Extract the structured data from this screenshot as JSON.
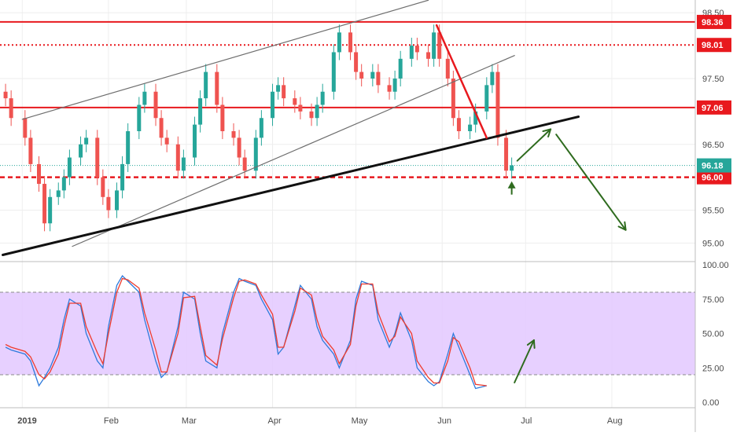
{
  "colors": {
    "up": "#26a69a",
    "down": "#ef5350",
    "level": "#e8191e",
    "price_line": "#26a69a",
    "stoch_k": "#2f7bdc",
    "stoch_d": "#ef3b2d",
    "stoch_band": "#e3c8ff",
    "channel": "#6e6e6e",
    "trendline": "#111111",
    "arrow": "#2e6b1e",
    "grid": "#eeeeee"
  },
  "price_axis": {
    "min": 94.85,
    "max": 98.55,
    "ticks": [
      "95.00",
      "95.50",
      "96.50",
      "97.50",
      "98.50"
    ]
  },
  "levels": [
    {
      "value": 98.36,
      "label": "98.36",
      "style": "solid"
    },
    {
      "value": 98.01,
      "label": "98.01",
      "style": "dotted"
    },
    {
      "value": 97.06,
      "label": "97.06",
      "style": "solid"
    },
    {
      "value": 96.0,
      "label": "96.00",
      "style": "dashed"
    }
  ],
  "last_price": {
    "value": 96.18,
    "label": "96.18"
  },
  "stoch_axis": {
    "ticks": [
      "100.00",
      "75.00",
      "50.00",
      "25.00",
      "0.00"
    ],
    "band": [
      20,
      80
    ]
  },
  "time_axis": {
    "labels": [
      "2019",
      "Feb",
      "Mar",
      "Apr",
      "May",
      "Jun",
      "Jul",
      "Aug"
    ]
  },
  "chart_data": {
    "type": "candlestick",
    "title": "",
    "x_range": [
      "2018-12-24",
      "2019-08-31"
    ],
    "candles_close_approx": [
      [
        "2018-12-26",
        97.2
      ],
      [
        "2018-12-28",
        96.9
      ],
      [
        "2019-01-02",
        96.6
      ],
      [
        "2019-01-04",
        96.2
      ],
      [
        "2019-01-07",
        95.9
      ],
      [
        "2019-01-09",
        95.3
      ],
      [
        "2019-01-11",
        95.7
      ],
      [
        "2019-01-14",
        95.8
      ],
      [
        "2019-01-16",
        96.0
      ],
      [
        "2019-01-18",
        96.3
      ],
      [
        "2019-01-22",
        96.5
      ],
      [
        "2019-01-24",
        96.6
      ],
      [
        "2019-01-28",
        96.0
      ],
      [
        "2019-01-30",
        95.7
      ],
      [
        "2019-02-01",
        95.5
      ],
      [
        "2019-02-04",
        95.8
      ],
      [
        "2019-02-06",
        96.2
      ],
      [
        "2019-02-08",
        96.7
      ],
      [
        "2019-02-12",
        97.1
      ],
      [
        "2019-02-14",
        97.3
      ],
      [
        "2019-02-18",
        96.9
      ],
      [
        "2019-02-20",
        96.6
      ],
      [
        "2019-02-22",
        96.5
      ],
      [
        "2019-02-26",
        96.1
      ],
      [
        "2019-02-28",
        96.3
      ],
      [
        "2019-03-04",
        96.8
      ],
      [
        "2019-03-06",
        97.2
      ],
      [
        "2019-03-08",
        97.6
      ],
      [
        "2019-03-12",
        97.1
      ],
      [
        "2019-03-14",
        96.7
      ],
      [
        "2019-03-18",
        96.6
      ],
      [
        "2019-03-20",
        96.3
      ],
      [
        "2019-03-22",
        96.1
      ],
      [
        "2019-03-26",
        96.6
      ],
      [
        "2019-03-28",
        96.9
      ],
      [
        "2019-04-01",
        97.3
      ],
      [
        "2019-04-03",
        97.4
      ],
      [
        "2019-04-05",
        97.2
      ],
      [
        "2019-04-09",
        97.1
      ],
      [
        "2019-04-11",
        97.0
      ],
      [
        "2019-04-15",
        96.9
      ],
      [
        "2019-04-17",
        97.1
      ],
      [
        "2019-04-19",
        97.3
      ],
      [
        "2019-04-23",
        97.9
      ],
      [
        "2019-04-25",
        98.2
      ],
      [
        "2019-04-29",
        97.9
      ],
      [
        "2019-05-01",
        97.6
      ],
      [
        "2019-05-03",
        97.5
      ],
      [
        "2019-05-07",
        97.6
      ],
      [
        "2019-05-09",
        97.4
      ],
      [
        "2019-05-13",
        97.3
      ],
      [
        "2019-05-15",
        97.5
      ],
      [
        "2019-05-17",
        97.8
      ],
      [
        "2019-05-21",
        98.0
      ],
      [
        "2019-05-23",
        97.9
      ],
      [
        "2019-05-27",
        97.8
      ],
      [
        "2019-05-29",
        98.2
      ],
      [
        "2019-05-31",
        97.8
      ],
      [
        "2019-06-03",
        97.5
      ],
      [
        "2019-06-05",
        96.9
      ],
      [
        "2019-06-07",
        96.7
      ],
      [
        "2019-06-11",
        96.8
      ],
      [
        "2019-06-13",
        97.0
      ],
      [
        "2019-06-17",
        97.4
      ],
      [
        "2019-06-19",
        97.6
      ],
      [
        "2019-06-21",
        96.6
      ],
      [
        "2019-06-24",
        96.1
      ],
      [
        "2019-06-26",
        96.18
      ]
    ],
    "stochastic": {
      "series": [
        {
          "name": "%K",
          "values": [
            40,
            38,
            35,
            30,
            12,
            18,
            25,
            40,
            60,
            75,
            70,
            50,
            30,
            25,
            55,
            85,
            92,
            88,
            80,
            60,
            30,
            18,
            22,
            55,
            80,
            75,
            50,
            30,
            25,
            50,
            80,
            90,
            88,
            85,
            75,
            60,
            35,
            40,
            70,
            85,
            75,
            55,
            45,
            35,
            25,
            45,
            75,
            88,
            85,
            60,
            40,
            50,
            65,
            45,
            25,
            15,
            12,
            15,
            35,
            50,
            40,
            20,
            10,
            12
          ]
        },
        {
          "name": "%D",
          "values": [
            42,
            40,
            37,
            33,
            20,
            17,
            22,
            35,
            55,
            72,
            72,
            55,
            36,
            28,
            50,
            80,
            90,
            89,
            83,
            65,
            38,
            22,
            22,
            50,
            76,
            77,
            55,
            34,
            27,
            46,
            76,
            88,
            89,
            86,
            78,
            64,
            40,
            40,
            66,
            83,
            78,
            60,
            48,
            38,
            28,
            42,
            70,
            86,
            86,
            65,
            44,
            48,
            62,
            50,
            30,
            18,
            14,
            14,
            30,
            47,
            44,
            25,
            13,
            12
          ]
        }
      ],
      "ylim": [
        0,
        100
      ],
      "band": [
        20,
        80
      ]
    }
  }
}
